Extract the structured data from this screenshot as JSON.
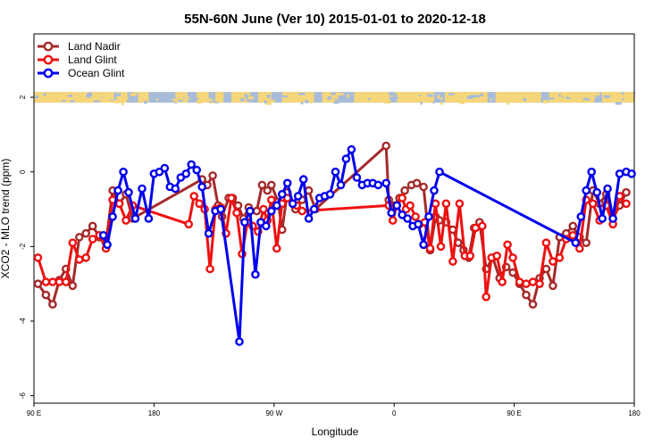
{
  "chart_data": {
    "type": "line",
    "title": "55N-60N June (Ver 10)   2015-01-01 to 2020-12-18",
    "xlabel": "Longitude",
    "ylabel": "XCO2 - MLO trend (ppm)",
    "x_unit": "degrees longitude, unwrapped (90 = 90 E, 180 = 180, 270 = 90 W, 360 = 0, 450 = 90 E, 540 = 180)",
    "xlim": [
      90,
      540
    ],
    "ylim": [
      -6.2,
      3.7
    ],
    "x_ticks": [
      {
        "value": 90,
        "label": "90 E"
      },
      {
        "value": 180,
        "label": "180"
      },
      {
        "value": 270,
        "label": "90 W"
      },
      {
        "value": 360,
        "label": "0"
      },
      {
        "value": 450,
        "label": "90 E"
      },
      {
        "value": 540,
        "label": "180"
      }
    ],
    "y_ticks": [
      {
        "value": -6,
        "label": "-6"
      },
      {
        "value": -4,
        "label": "-4"
      },
      {
        "value": -2,
        "label": "-2"
      },
      {
        "value": 0,
        "label": "0"
      },
      {
        "value": 2,
        "label": "2"
      }
    ],
    "grid": false,
    "legend_position": "top-left",
    "land_ocean_band": {
      "y_value": 2,
      "land_color": "#f5d67a",
      "ocean_color": "#a8bcd9"
    },
    "series": [
      {
        "name": "Land Nadir",
        "color": "#a52a2a",
        "x": [
          93,
          99,
          104,
          109,
          114,
          119,
          124,
          129,
          134,
          139,
          144,
          149,
          154,
          159,
          164,
          216,
          220,
          224,
          228,
          231,
          236,
          239,
          243,
          247,
          251,
          257,
          261,
          265,
          268,
          273,
          276,
          280,
          286,
          291,
          296,
          301,
          354,
          356,
          360,
          364,
          368,
          373,
          377,
          382,
          387,
          391,
          394,
          399,
          404,
          408,
          412,
          416,
          420,
          424,
          429,
          434,
          439,
          444,
          449,
          454,
          459,
          464,
          469,
          474,
          479,
          484,
          489,
          494,
          499,
          504,
          509,
          514,
          519,
          524,
          529,
          534
        ],
        "y": [
          -3.0,
          -3.3,
          -3.55,
          -2.9,
          -2.6,
          -3.05,
          -1.75,
          -1.65,
          -1.45,
          -1.75,
          -1.9,
          -0.5,
          -0.85,
          -0.6,
          -1.25,
          -0.2,
          -0.35,
          -0.1,
          -0.9,
          -1.2,
          -0.7,
          -0.7,
          -0.9,
          -1.25,
          -0.95,
          -1.05,
          -0.35,
          -0.5,
          -0.35,
          -0.8,
          -1.55,
          -0.55,
          -1.0,
          -0.75,
          -0.5,
          -1.0,
          0.7,
          -0.75,
          -0.9,
          -0.7,
          -0.5,
          -0.35,
          -0.3,
          -0.4,
          -2.1,
          -1.2,
          -1.3,
          -1.35,
          -1.55,
          -1.9,
          -2.1,
          -2.3,
          -1.5,
          -1.35,
          -2.6,
          -2.3,
          -2.85,
          -2.55,
          -2.7,
          -3.0,
          -3.3,
          -3.55,
          -2.85,
          -2.6,
          -3.05,
          -1.75,
          -1.65,
          -1.45,
          -1.75,
          -1.9,
          -0.5,
          -0.85,
          -0.6,
          -1.25,
          -0.9,
          -0.55
        ]
      },
      {
        "name": "Land Glint",
        "color": "#ee1111",
        "x": [
          93,
          99,
          104,
          109,
          114,
          119,
          124,
          129,
          134,
          139,
          144,
          149,
          154,
          159,
          164,
          206,
          210,
          214,
          218,
          222,
          226,
          230,
          234,
          238,
          242,
          246,
          250,
          254,
          258,
          262,
          265,
          268,
          272,
          276,
          280,
          284,
          287,
          291,
          356,
          359,
          362,
          366,
          369,
          372,
          376,
          379,
          383,
          387,
          391,
          395,
          399,
          404,
          409,
          413,
          417,
          421,
          426,
          429,
          433,
          437,
          441,
          445,
          449,
          454,
          459,
          464,
          469,
          474,
          479,
          484,
          489,
          494,
          499,
          504,
          509,
          514,
          519,
          524,
          529,
          534
        ],
        "y": [
          -2.3,
          -2.95,
          -2.95,
          -2.95,
          -2.95,
          -1.9,
          -2.35,
          -2.3,
          -1.8,
          -1.7,
          -2.05,
          -0.75,
          -0.85,
          -1.3,
          -0.9,
          -1.4,
          -0.65,
          -0.85,
          -1.0,
          -2.6,
          -1.0,
          -0.95,
          -1.65,
          -0.7,
          -1.1,
          -2.2,
          -1.35,
          -1.45,
          -1.6,
          -1.0,
          -1.3,
          -0.75,
          -2.05,
          -0.85,
          -0.7,
          -0.85,
          -0.9,
          -1.05,
          -0.9,
          -1.3,
          -0.9,
          -0.7,
          -1.0,
          -0.9,
          -1.2,
          -1.4,
          -1.35,
          -2.05,
          -0.85,
          -2.0,
          -0.85,
          -2.4,
          -0.85,
          -2.25,
          -2.25,
          -1.5,
          -1.45,
          -3.35,
          -2.3,
          -2.25,
          -2.95,
          -1.95,
          -2.3,
          -2.95,
          -3.0,
          -2.95,
          -3.0,
          -1.9,
          -2.4,
          -2.3,
          -1.8,
          -1.7,
          -2.05,
          -0.75,
          -0.85,
          -1.3,
          -0.9,
          -1.4,
          -0.65,
          -0.85
        ]
      },
      {
        "name": "Ocean Glint",
        "color": "#0000ee",
        "x": [
          142,
          145,
          149,
          153,
          157,
          161,
          166,
          171,
          176,
          180,
          184,
          188,
          192,
          196,
          200,
          204,
          208,
          212,
          216,
          221,
          226,
          230,
          244,
          248,
          252,
          256,
          260,
          264,
          268,
          272,
          276,
          280,
          284,
          288,
          292,
          296,
          300,
          304,
          308,
          312,
          316,
          320,
          324,
          328,
          332,
          336,
          340,
          344,
          348,
          354,
          358,
          362,
          366,
          370,
          374,
          378,
          382,
          386,
          390,
          394,
          496,
          500,
          504,
          508,
          512,
          516,
          520,
          524,
          529,
          534,
          538
        ],
        "y": [
          -1.7,
          -1.95,
          -1.2,
          -0.5,
          0.0,
          -0.55,
          -1.25,
          -0.45,
          -1.25,
          -0.05,
          0.0,
          0.1,
          -0.4,
          -0.45,
          -0.15,
          -0.05,
          0.2,
          0.05,
          -0.4,
          -1.65,
          -1.05,
          -1.0,
          -4.55,
          -1.35,
          -1.05,
          -2.75,
          -1.35,
          -1.45,
          -1.05,
          -0.9,
          -0.6,
          -0.3,
          -0.85,
          -0.65,
          -0.2,
          -1.25,
          -1.0,
          -0.7,
          -0.65,
          -0.6,
          0.0,
          -0.35,
          0.35,
          0.6,
          -0.15,
          -0.35,
          -0.3,
          -0.3,
          -0.35,
          -0.3,
          -1.1,
          -0.9,
          -1.15,
          -1.25,
          -1.45,
          -1.4,
          -1.95,
          -1.2,
          -0.5,
          0.0,
          -1.9,
          -1.2,
          -0.5,
          0.0,
          -0.55,
          -1.25,
          -0.45,
          -1.25,
          -0.05,
          0.0,
          -0.05
        ]
      }
    ]
  }
}
